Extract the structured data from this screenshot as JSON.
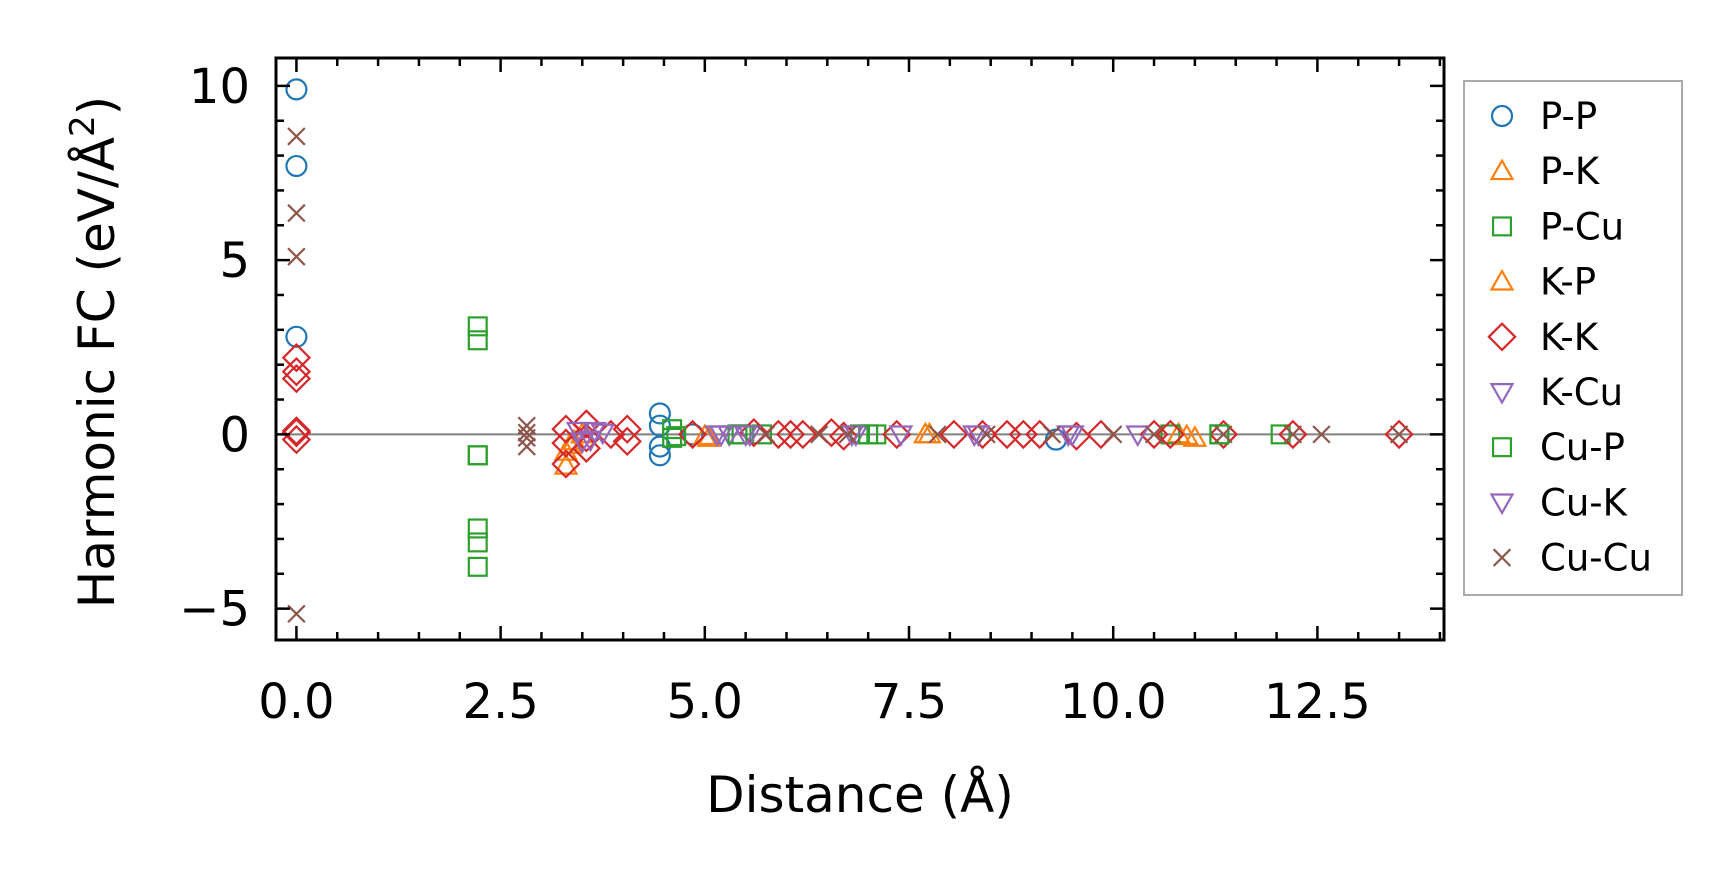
{
  "chart_data": {
    "type": "scatter",
    "title": "",
    "xlabel": "Distance (Å)",
    "ylabel_main": "Harmonic FC (eV/Å",
    "ylabel_sup": "2",
    "ylabel_close": ")",
    "xlim": [
      -0.25,
      14.05
    ],
    "ylim": [
      -5.9,
      10.8
    ],
    "xticks": [
      0.0,
      2.5,
      5.0,
      7.5,
      10.0,
      12.5
    ],
    "xtick_labels": [
      "0.0",
      "2.5",
      "5.0",
      "7.5",
      "10.0",
      "12.5"
    ],
    "yticks": [
      -5,
      0,
      5,
      10
    ],
    "ytick_labels": [
      "−5",
      "0",
      "5",
      "10"
    ],
    "zero_line": true,
    "legend_position": "right, outside plot",
    "series": [
      {
        "name": "P-P",
        "marker": "circle",
        "color": "#1f77b4",
        "x": [
          0.0,
          0.0,
          0.0,
          4.45,
          4.45,
          4.45,
          4.45,
          4.85,
          9.3
        ],
        "y": [
          9.9,
          7.7,
          2.8,
          0.6,
          0.25,
          -0.35,
          -0.6,
          0.0,
          -0.15
        ]
      },
      {
        "name": "P-K",
        "marker": "triangle-up",
        "color": "#ff7f0e",
        "x": [
          3.3,
          3.3,
          3.4,
          3.5,
          5.05,
          7.7,
          10.8,
          11.0
        ],
        "y": [
          -0.9,
          -0.5,
          -0.2,
          0.0,
          -0.1,
          0.0,
          0.0,
          -0.1
        ]
      },
      {
        "name": "P-Cu",
        "marker": "square",
        "color": "#2ca02c",
        "x": [
          2.22,
          2.22,
          2.22,
          2.22,
          2.22,
          2.22,
          2.22,
          4.6,
          4.6,
          5.45,
          5.7,
          6.9,
          7.1,
          10.7,
          11.3,
          12.05
        ],
        "y": [
          3.1,
          2.7,
          -0.6,
          -2.7,
          -3.1,
          -3.8,
          -0.6,
          0.15,
          -0.1,
          0.0,
          0.0,
          0.0,
          0.0,
          0.0,
          0.0,
          0.0
        ]
      },
      {
        "name": "K-P",
        "marker": "triangle-up",
        "color": "#ff7f0e",
        "x": [
          3.35,
          5.0,
          7.75,
          10.9
        ],
        "y": [
          -0.3,
          -0.05,
          0.0,
          -0.05
        ]
      },
      {
        "name": "K-K",
        "marker": "diamond",
        "color": "#d62728",
        "x": [
          0.0,
          0.0,
          0.0,
          0.0,
          0.0,
          0.0,
          3.3,
          3.3,
          3.3,
          3.55,
          3.55,
          3.55,
          3.85,
          4.05,
          4.05,
          4.85,
          5.6,
          5.9,
          6.05,
          6.2,
          6.55,
          6.7,
          7.35,
          8.05,
          8.4,
          8.7,
          8.9,
          9.1,
          9.55,
          9.85,
          10.5,
          10.7,
          11.35,
          12.2,
          13.5
        ],
        "y": [
          2.2,
          1.8,
          1.6,
          0.1,
          -0.15,
          0.05,
          -0.85,
          0.15,
          -0.25,
          0.3,
          -0.1,
          -0.4,
          0.0,
          0.15,
          -0.2,
          0.0,
          0.05,
          0.0,
          0.0,
          0.0,
          0.05,
          -0.05,
          0.0,
          0.0,
          0.0,
          0.0,
          0.0,
          0.0,
          -0.05,
          0.0,
          0.0,
          0.0,
          0.0,
          0.0,
          0.0
        ]
      },
      {
        "name": "K-Cu",
        "marker": "triangle-down",
        "color": "#9467bd",
        "x": [
          3.45,
          3.6,
          3.75,
          5.15,
          5.3,
          5.55,
          6.85,
          7.4,
          8.3,
          9.5,
          10.3
        ],
        "y": [
          0.1,
          -0.15,
          0.05,
          0.0,
          0.0,
          0.0,
          0.0,
          0.0,
          0.0,
          0.0,
          0.0
        ]
      },
      {
        "name": "Cu-P",
        "marker": "square",
        "color": "#2ca02c",
        "x": [
          4.65,
          5.4,
          7.0,
          11.3
        ],
        "y": [
          -0.05,
          0.0,
          0.0,
          0.0
        ]
      },
      {
        "name": "Cu-K",
        "marker": "triangle-down",
        "color": "#9467bd",
        "x": [
          3.5,
          3.65,
          5.2,
          5.5,
          6.8,
          8.35,
          9.45
        ],
        "y": [
          -0.2,
          0.1,
          0.0,
          0.0,
          0.0,
          0.0,
          0.0
        ]
      },
      {
        "name": "Cu-Cu",
        "marker": "x",
        "color": "#8c564b",
        "x": [
          0.0,
          0.0,
          0.0,
          0.0,
          2.82,
          2.82,
          2.82,
          2.82,
          5.75,
          6.4,
          6.75,
          7.85,
          8.45,
          9.25,
          10.0,
          10.5,
          11.35,
          12.2,
          12.55,
          13.5
        ],
        "y": [
          8.55,
          6.35,
          5.1,
          -5.15,
          0.25,
          0.05,
          -0.1,
          -0.35,
          0.0,
          0.0,
          0.0,
          0.0,
          0.0,
          0.0,
          0.0,
          0.0,
          0.0,
          0.0,
          0.0,
          0.0
        ]
      }
    ]
  }
}
